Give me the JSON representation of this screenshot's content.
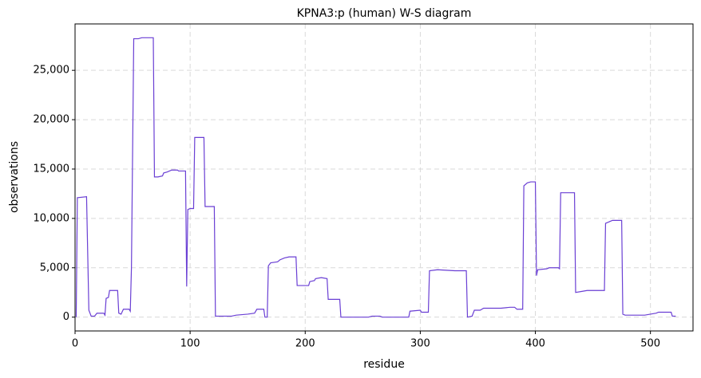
{
  "chart_data": {
    "type": "line",
    "title": "KPNA3:p (human) W-S diagram",
    "x_label": "residue",
    "y_label": "observations",
    "color": "#6a3fd4",
    "grid": true,
    "xlim": [
      0,
      537
    ],
    "ylim": [
      -1400,
      29700
    ],
    "xticks": [
      0,
      100,
      200,
      300,
      400,
      500
    ],
    "yticks": [
      0,
      {
        "value": 5000,
        "label": "5,000"
      },
      {
        "value": 10000,
        "label": "10,000"
      },
      {
        "value": 15000,
        "label": "15,000"
      },
      {
        "value": 20000,
        "label": "20,000"
      },
      {
        "value": 25000,
        "label": "25,000"
      }
    ],
    "x": [
      1,
      2,
      10,
      12,
      14,
      17,
      19,
      25,
      26,
      27,
      29,
      30,
      37,
      38,
      40,
      42,
      47,
      48,
      49,
      51,
      55,
      58,
      68,
      69,
      72,
      76,
      77,
      80,
      84,
      89,
      90,
      96,
      97,
      98,
      100,
      103,
      104,
      112,
      113,
      121,
      122,
      130,
      136,
      140,
      150,
      156,
      158,
      164,
      165,
      167,
      168,
      170,
      176,
      178,
      182,
      186,
      192,
      193,
      203,
      204,
      208,
      209,
      214,
      219,
      220,
      230,
      231,
      255,
      258,
      265,
      267,
      290,
      291,
      300,
      301,
      307,
      308,
      315,
      330,
      340,
      341,
      345,
      347,
      352,
      355,
      370,
      378,
      382,
      384,
      389,
      390,
      393,
      396,
      400,
      401,
      402,
      410,
      412,
      420,
      421,
      422,
      434,
      435,
      440,
      445,
      460,
      461,
      465,
      467,
      475,
      476,
      478,
      490,
      495,
      500,
      505,
      507,
      518,
      519,
      522
    ],
    "values": [
      0,
      12100,
      12200,
      700,
      100,
      100,
      400,
      400,
      200,
      1900,
      2000,
      2700,
      2700,
      400,
      300,
      800,
      800,
      600,
      5000,
      28200,
      28200,
      28300,
      28300,
      14200,
      14200,
      14300,
      14600,
      14700,
      14900,
      14900,
      14800,
      14800,
      3100,
      10900,
      11000,
      11000,
      18200,
      18200,
      11200,
      11200,
      100,
      100,
      100,
      200,
      300,
      400,
      800,
      800,
      0,
      0,
      5200,
      5500,
      5600,
      5800,
      6000,
      6100,
      6100,
      3200,
      3200,
      3600,
      3700,
      3900,
      4000,
      3900,
      1800,
      1800,
      0,
      0,
      100,
      100,
      0,
      0,
      600,
      700,
      500,
      500,
      4700,
      4800,
      4700,
      4700,
      0,
      100,
      700,
      700,
      900,
      900,
      1000,
      1000,
      800,
      800,
      13300,
      13600,
      13700,
      13700,
      4200,
      4800,
      4900,
      5000,
      5000,
      4900,
      12600,
      12600,
      2500,
      2600,
      2700,
      2700,
      9500,
      9700,
      9800,
      9800,
      300,
      200,
      200,
      200,
      300,
      400,
      500,
      500,
      100,
      100
    ]
  }
}
